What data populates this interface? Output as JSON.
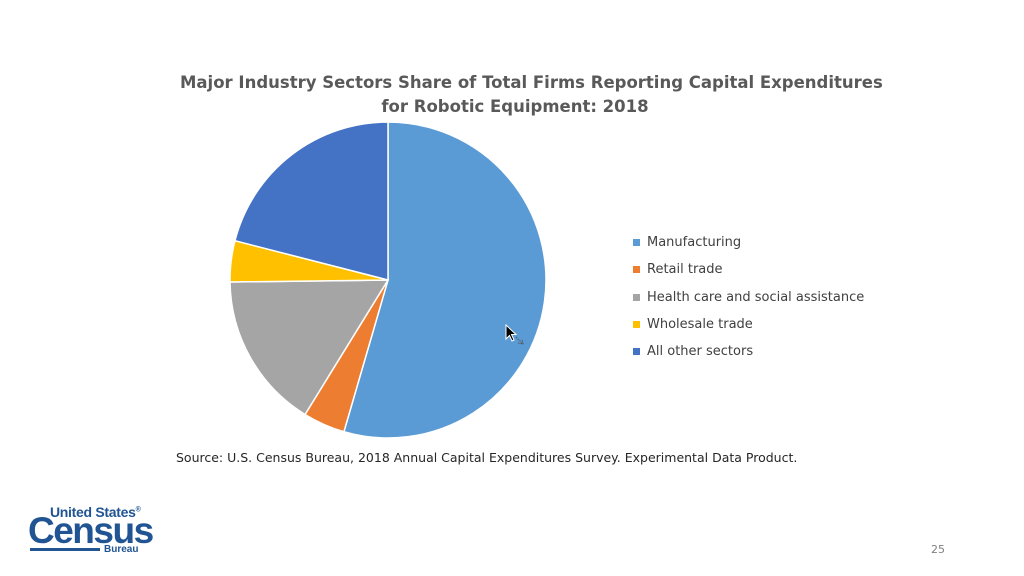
{
  "slide": {
    "source_text": "Source: U.S. Census Bureau, 2018 Annual Capital Expenditures Survey. Experimental Data Product.",
    "page_number": "25",
    "logo": {
      "line1": "United States",
      "registered": "®",
      "line2": "Census",
      "line3": "Bureau",
      "color": "#205493"
    }
  },
  "chart_data": {
    "type": "pie",
    "title_lines": [
      "Major Industry Sectors Share of Total Firms Reporting Capital Expenditures",
      "for Robotic Equipment: 2018"
    ],
    "start_angle_deg": 0,
    "direction": "clockwise",
    "slice_border": "#ffffff",
    "legend_position": "right",
    "slices": [
      {
        "label": "Manufacturing",
        "value": 54.5,
        "color": "#5B9BD5"
      },
      {
        "label": "Retail trade",
        "value": 4.3,
        "color": "#ED7D31"
      },
      {
        "label": "Health care and social assistance",
        "value": 16.0,
        "color": "#A5A5A5"
      },
      {
        "label": "Wholesale trade",
        "value": 4.2,
        "color": "#FFC000"
      },
      {
        "label": "All other sectors",
        "value": 21.0,
        "color": "#4472C4"
      }
    ]
  }
}
